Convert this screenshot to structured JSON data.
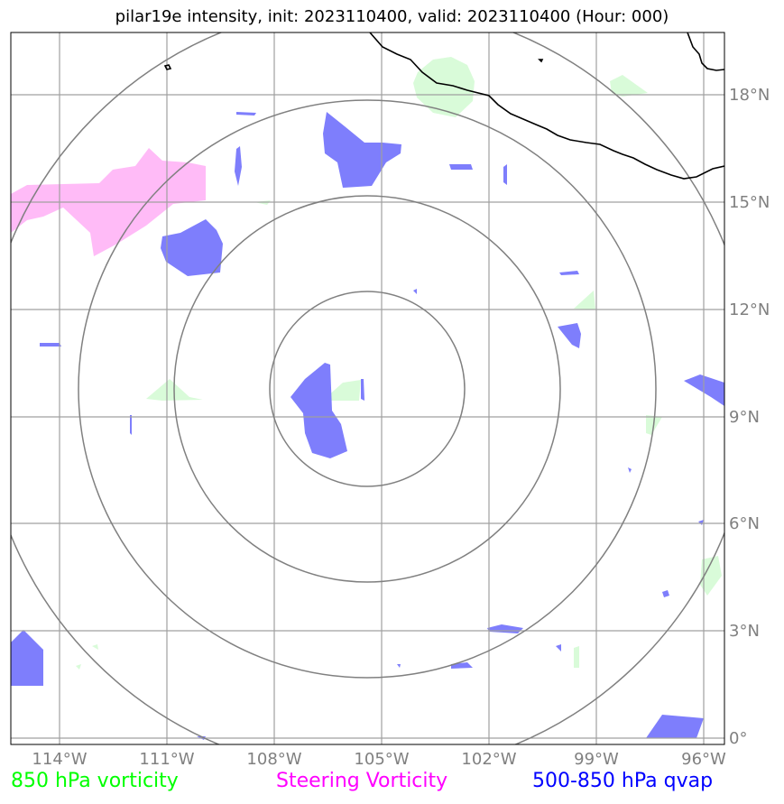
{
  "title": "pilar19e intensity, init: 2023110400, valid: 2023110400 (Hour: 000)",
  "lon_labels": [
    "114°W",
    "111°W",
    "108°W",
    "105°W",
    "102°W",
    "99°W",
    "96°W"
  ],
  "lat_labels": [
    "18°N",
    "15°N",
    "12°N",
    "9°N",
    "6°N",
    "3°N",
    "0°"
  ],
  "legend": {
    "green": "850 hPa vorticity",
    "magenta": "Steering Vorticity",
    "blue": "500-850 hPa qvap"
  },
  "colors": {
    "vorticity_850": "#00ff00",
    "steering_vorticity": "#ff00ff",
    "qvap": "#0000ff",
    "green_fill": "#d9fbd9",
    "magenta_fill": "#ffbbf7",
    "blue_fill": "#7e7efc",
    "grid": "#a0a0a0",
    "range_rings": "#808080",
    "coastline": "#000000"
  }
}
